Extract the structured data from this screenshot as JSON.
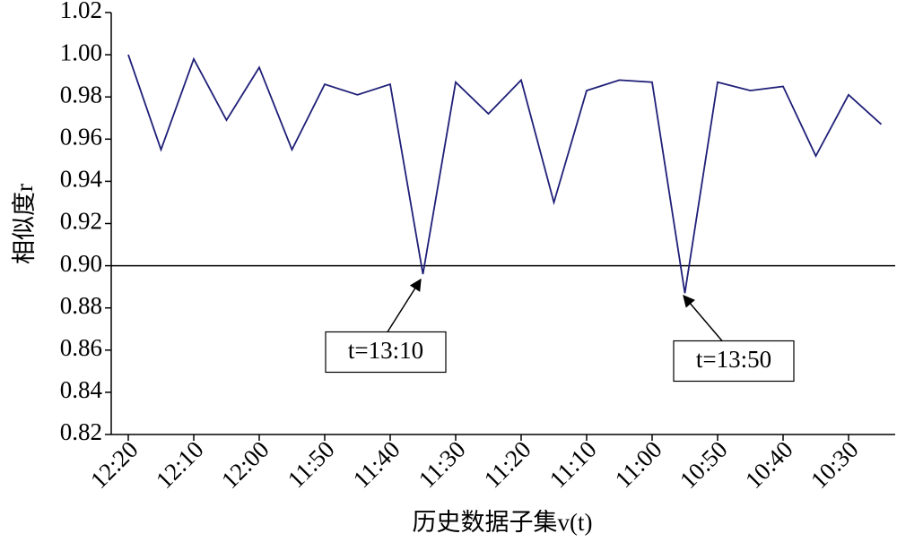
{
  "chart_data": {
    "type": "line",
    "x_label": "历史数据子集v(t)",
    "y_label": "相似度r",
    "categories": [
      "12:20",
      null,
      "12:10",
      null,
      "12:00",
      null,
      "11:50",
      null,
      "11:40",
      null,
      "11:30",
      null,
      "11:20",
      null,
      "11:10",
      null,
      "11:00",
      null,
      "10:50",
      null,
      "10:40",
      null,
      "10:30",
      null
    ],
    "series": [
      {
        "name": "相似度",
        "color": "#1f1f78",
        "values": [
          1.0,
          0.955,
          0.998,
          0.969,
          0.994,
          0.955,
          0.986,
          0.981,
          0.986,
          0.896,
          0.987,
          0.972,
          0.988,
          0.93,
          0.983,
          0.988,
          0.987,
          0.887,
          0.987,
          0.983,
          0.985,
          0.952,
          0.981,
          0.967
        ]
      }
    ],
    "reference_line": {
      "value": 0.9,
      "color": "#000000"
    },
    "annotations": [
      "t=13:10",
      "t=13:50"
    ],
    "ylim": [
      0.82,
      1.02
    ],
    "yticks": [
      0.82,
      0.84,
      0.86,
      0.88,
      {
        "value": 0.9,
        "label": "0.90"
      },
      0.92,
      0.94,
      0.96,
      0.98,
      {
        "value": 1,
        "label": "1.00"
      },
      1.02
    ],
    "grid": false
  }
}
